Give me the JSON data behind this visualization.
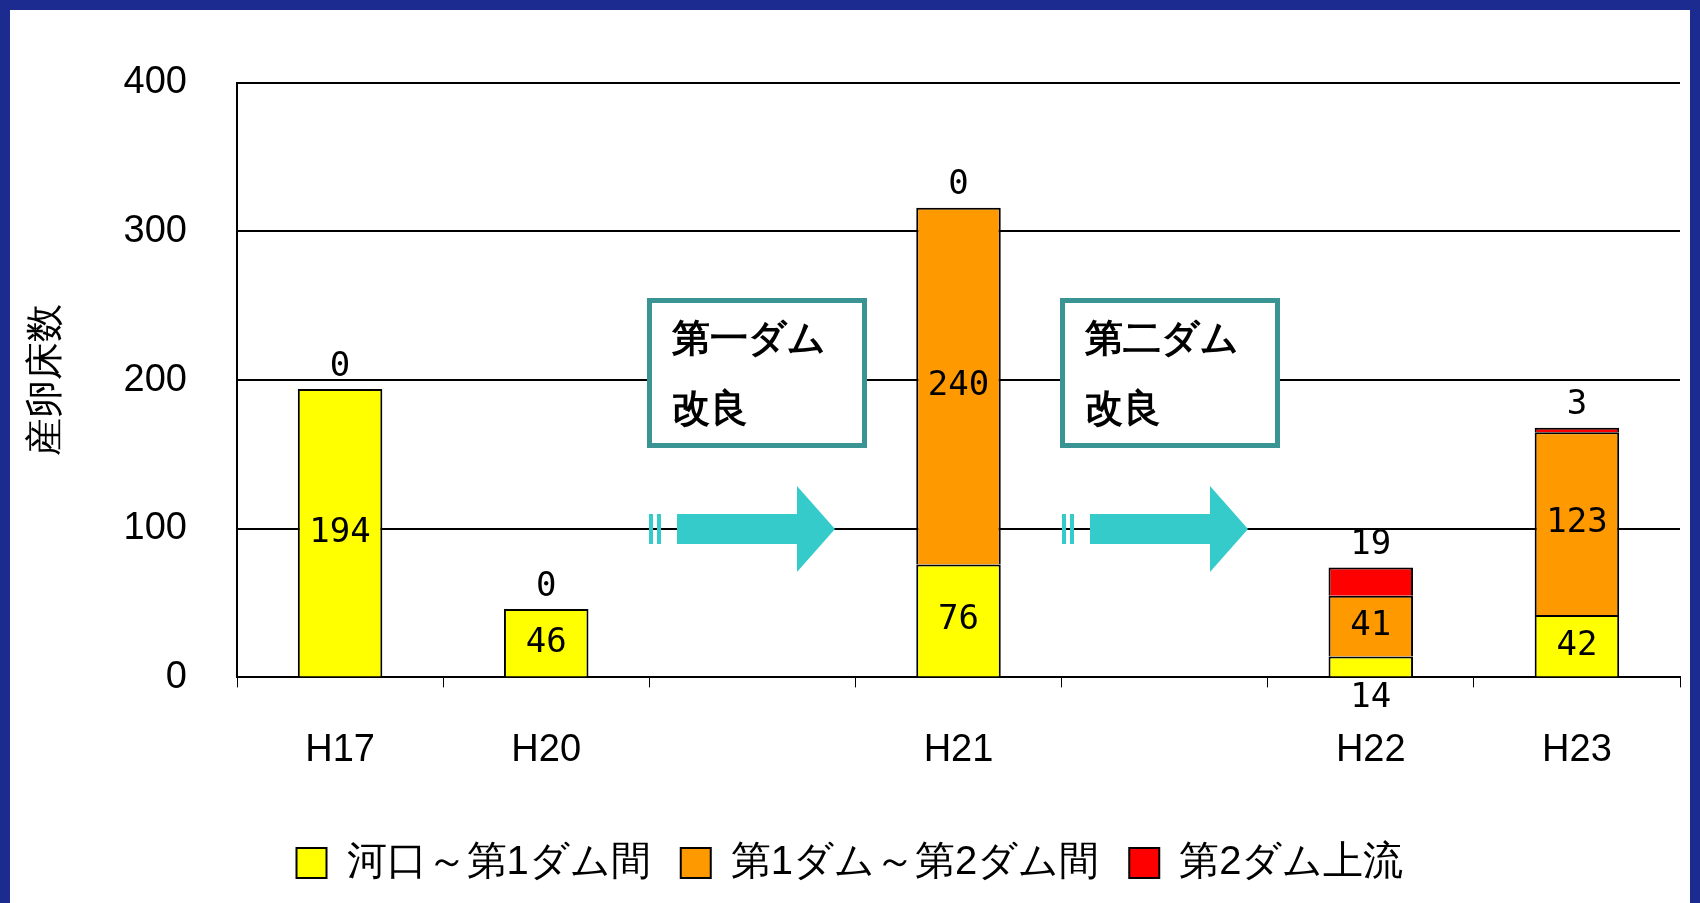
{
  "chart_data": {
    "type": "bar",
    "stacked": true,
    "ylabel": "産卵床数",
    "categories": [
      "H17",
      "H20",
      null,
      "H21",
      null,
      "H22",
      "H23"
    ],
    "series": [
      {
        "name": "河口～第1ダム間",
        "color": "#ffff00",
        "values": [
          194,
          46,
          null,
          76,
          null,
          14,
          42
        ],
        "value_labels": [
          "194",
          "46",
          null,
          "76",
          null,
          "14",
          "42"
        ]
      },
      {
        "name": "第1ダム～第2ダム間",
        "color": "#ff9900",
        "values": [
          0,
          0,
          null,
          240,
          null,
          41,
          123
        ],
        "value_labels": [
          "0",
          "0",
          null,
          "240",
          null,
          "41",
          "123"
        ]
      },
      {
        "name": "第2ダム上流",
        "color": "#ff0000",
        "values": [
          null,
          null,
          null,
          0,
          null,
          19,
          3
        ],
        "value_labels": [
          null,
          null,
          null,
          "0",
          null,
          "19",
          "3"
        ]
      }
    ],
    "ylim": [
      0,
      400
    ],
    "yticks": [
      0,
      100,
      200,
      300,
      400
    ],
    "grid": "y",
    "legend": "bottom",
    "annotations": [
      "第一ダム改良",
      "第二ダム改良"
    ]
  }
}
